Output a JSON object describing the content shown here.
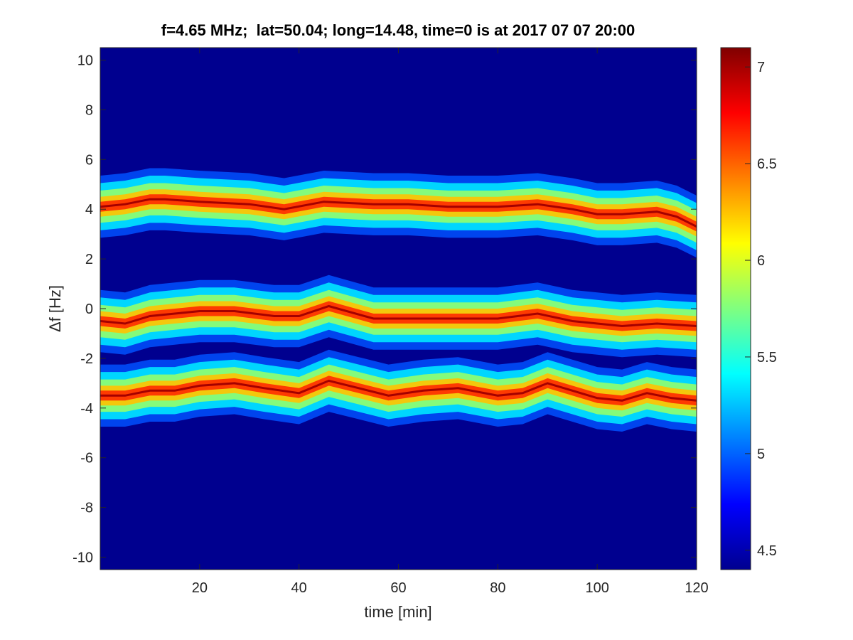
{
  "chart_data": {
    "type": "heatmap",
    "title": "f=4.65 MHz;  lat=50.04; long=14.48, time=0 is at 2017 07 07 20:00",
    "xlabel": "time [min]",
    "ylabel": "Δf [Hz]",
    "xlim": [
      0,
      120
    ],
    "ylim": [
      -10.5,
      10.5
    ],
    "xticks": [
      20,
      40,
      60,
      80,
      100,
      120
    ],
    "yticks": [
      10,
      8,
      6,
      4,
      2,
      0,
      -2,
      -4,
      -6,
      -8,
      -10
    ],
    "colorbar": {
      "colormap": "jet",
      "clim": [
        4.4,
        7.1
      ],
      "ticks": [
        7,
        6.5,
        6,
        5.5,
        5,
        4.5
      ]
    },
    "grid": false,
    "bands": [
      {
        "label_hz": 4,
        "time": [
          0,
          5,
          10,
          13,
          20,
          30,
          37,
          45,
          55,
          62,
          70,
          80,
          88,
          95,
          100,
          105,
          112,
          116,
          120
        ],
        "center_hz": [
          4.1,
          4.2,
          4.4,
          4.4,
          4.3,
          4.2,
          4.0,
          4.3,
          4.2,
          4.2,
          4.1,
          4.1,
          4.2,
          4.0,
          3.8,
          3.8,
          3.9,
          3.7,
          3.3
        ]
      },
      {
        "label_hz": 0,
        "time": [
          0,
          5,
          10,
          15,
          20,
          27,
          35,
          40,
          46,
          55,
          62,
          70,
          80,
          88,
          95,
          100,
          105,
          112,
          120
        ],
        "center_hz": [
          -0.5,
          -0.6,
          -0.3,
          -0.2,
          -0.1,
          -0.1,
          -0.3,
          -0.3,
          0.1,
          -0.4,
          -0.4,
          -0.4,
          -0.4,
          -0.2,
          -0.5,
          -0.6,
          -0.7,
          -0.6,
          -0.7
        ]
      },
      {
        "label_hz": -3.5,
        "time": [
          0,
          5,
          10,
          15,
          20,
          27,
          33,
          40,
          46,
          52,
          58,
          65,
          72,
          80,
          85,
          90,
          95,
          100,
          105,
          110,
          115,
          120
        ],
        "center_hz": [
          -3.5,
          -3.5,
          -3.3,
          -3.3,
          -3.1,
          -3.0,
          -3.2,
          -3.4,
          -2.9,
          -3.2,
          -3.5,
          -3.3,
          -3.2,
          -3.5,
          -3.4,
          -3.0,
          -3.3,
          -3.6,
          -3.7,
          -3.4,
          -3.6,
          -3.7
        ]
      }
    ],
    "background_value": 4.4,
    "peak_value": 7.0
  }
}
